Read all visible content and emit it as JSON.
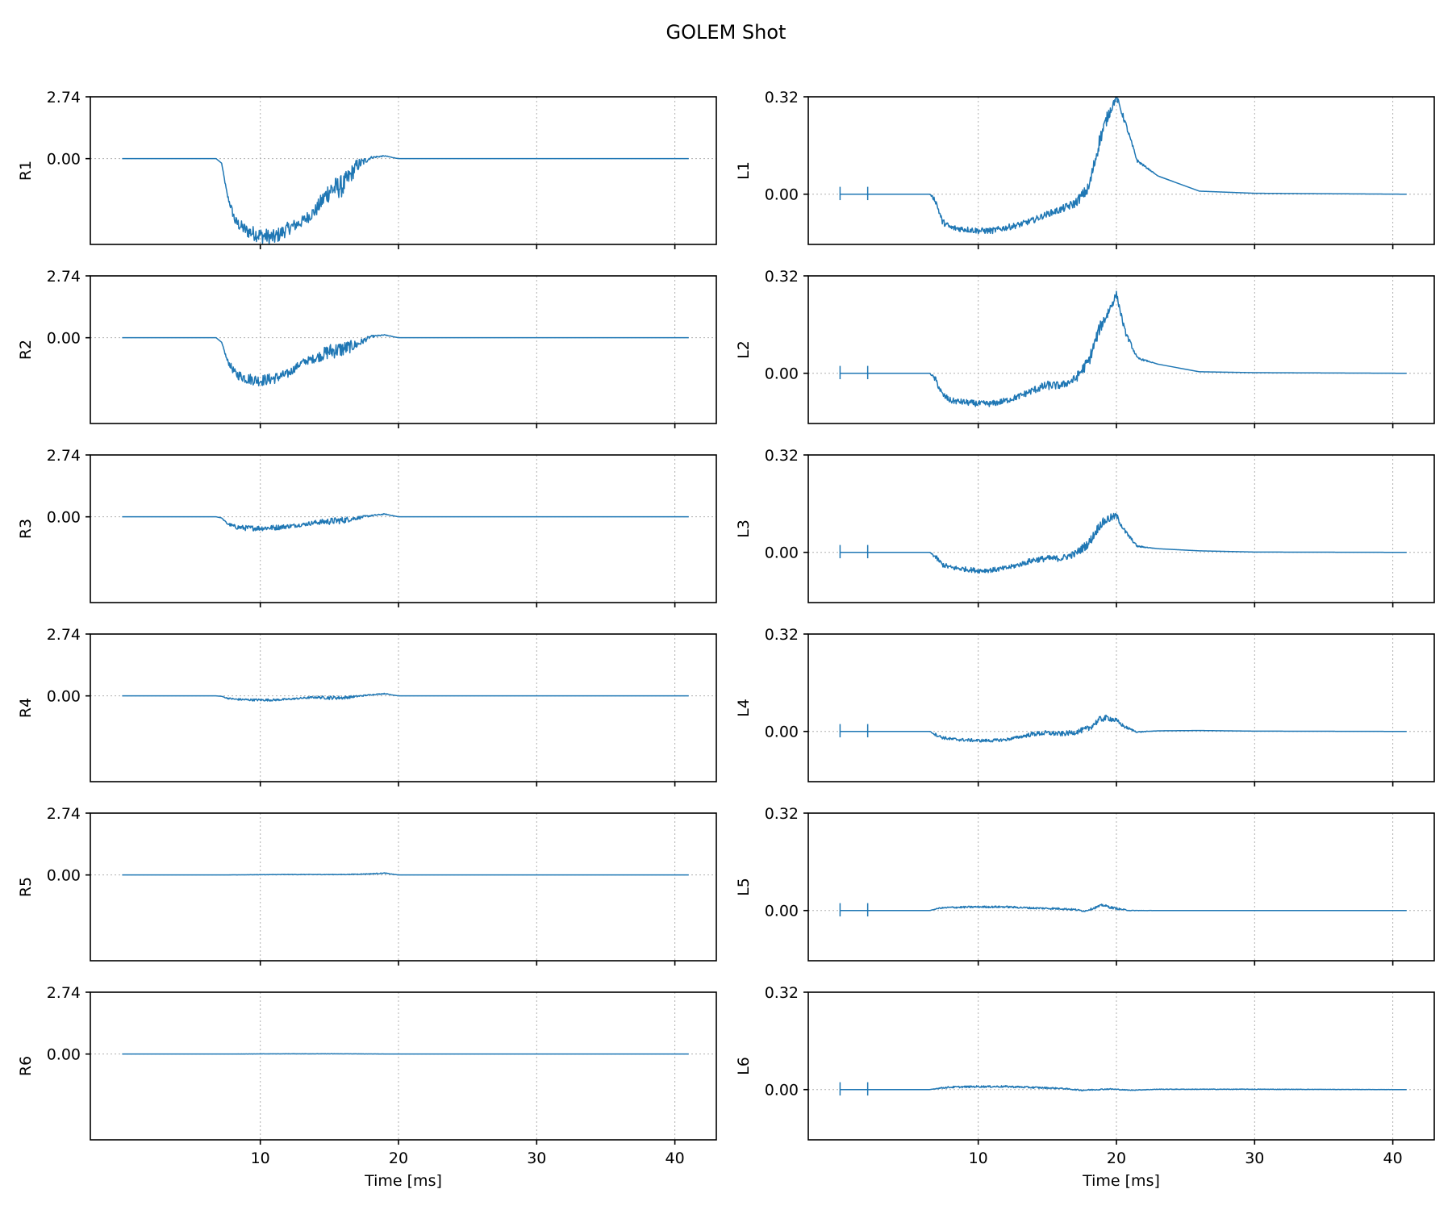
{
  "figure": {
    "title": "GOLEM Shot",
    "line_color": "#1f77b4"
  },
  "chart_data": [
    {
      "type": "line",
      "panel": "R1",
      "ylabel": "R1",
      "column": "left",
      "xlim": [
        -2.3,
        43
      ],
      "ylim": [
        -3.8,
        2.74
      ],
      "yticks": [
        "2.74",
        "0.00"
      ],
      "ytick_values": [
        2.74,
        0.0
      ],
      "xticks": [
        10,
        20,
        30,
        40
      ],
      "xlabel": "",
      "grid": true,
      "x": [
        0,
        2,
        6.8,
        7.2,
        7.6,
        8.2,
        9,
        10,
        11,
        12,
        13,
        14,
        15,
        16,
        17,
        18,
        19,
        20,
        22,
        30,
        41
      ],
      "y": [
        0,
        0,
        0,
        -0.2,
        -1.6,
        -2.8,
        -3.2,
        -3.4,
        -3.5,
        -3.1,
        -2.8,
        -2.3,
        -1.4,
        -1.2,
        -0.3,
        0.05,
        0.12,
        0.0,
        0,
        0,
        0
      ],
      "noise": [
        0,
        0,
        0,
        0,
        0.1,
        0.25,
        0.3,
        0.35,
        0.35,
        0.3,
        0.25,
        0.3,
        0.5,
        0.5,
        0.3,
        0.05,
        0.02,
        0,
        0,
        0,
        0
      ]
    },
    {
      "type": "line",
      "panel": "R2",
      "ylabel": "R2",
      "column": "left",
      "xlim": [
        -2.3,
        43
      ],
      "ylim": [
        -3.8,
        2.74
      ],
      "yticks": [
        "2.74",
        "0.00"
      ],
      "ytick_values": [
        2.74,
        0.0
      ],
      "xticks": [
        10,
        20,
        30,
        40
      ],
      "xlabel": "",
      "grid": true,
      "x": [
        0,
        2,
        6.8,
        7.2,
        7.6,
        8.2,
        9,
        10,
        11,
        12,
        13,
        14,
        15,
        16,
        17,
        18,
        19,
        20,
        22,
        30,
        41
      ],
      "y": [
        0,
        0,
        0,
        -0.2,
        -1.0,
        -1.6,
        -1.8,
        -1.9,
        -1.8,
        -1.6,
        -1.1,
        -0.9,
        -0.6,
        -0.5,
        -0.3,
        0.05,
        0.12,
        0.0,
        0,
        0,
        0
      ],
      "noise": [
        0,
        0,
        0,
        0,
        0.1,
        0.2,
        0.25,
        0.25,
        0.25,
        0.2,
        0.15,
        0.2,
        0.35,
        0.35,
        0.2,
        0.05,
        0.02,
        0,
        0,
        0,
        0
      ]
    },
    {
      "type": "line",
      "panel": "R3",
      "ylabel": "R3",
      "column": "left",
      "xlim": [
        -2.3,
        43
      ],
      "ylim": [
        -3.8,
        2.74
      ],
      "yticks": [
        "2.74",
        "0.00"
      ],
      "ytick_values": [
        2.74,
        0.0
      ],
      "xticks": [
        10,
        20,
        30,
        40
      ],
      "xlabel": "",
      "grid": true,
      "x": [
        0,
        2,
        6.8,
        7.2,
        7.6,
        8.2,
        9,
        10,
        11,
        12,
        13,
        14,
        15,
        16,
        17,
        18,
        19,
        20,
        22,
        30,
        41
      ],
      "y": [
        0,
        0,
        0,
        -0.05,
        -0.3,
        -0.45,
        -0.5,
        -0.5,
        -0.48,
        -0.42,
        -0.35,
        -0.25,
        -0.2,
        -0.15,
        -0.05,
        0.05,
        0.12,
        0.0,
        0,
        0,
        0
      ],
      "noise": [
        0,
        0,
        0,
        0,
        0.05,
        0.1,
        0.12,
        0.12,
        0.12,
        0.1,
        0.08,
        0.1,
        0.15,
        0.15,
        0.08,
        0.03,
        0.02,
        0,
        0,
        0,
        0
      ]
    },
    {
      "type": "line",
      "panel": "R4",
      "ylabel": "R4",
      "column": "left",
      "xlim": [
        -2.3,
        43
      ],
      "ylim": [
        -3.8,
        2.74
      ],
      "yticks": [
        "2.74",
        "0.00"
      ],
      "ytick_values": [
        2.74,
        0.0
      ],
      "xticks": [
        10,
        20,
        30,
        40
      ],
      "xlabel": "",
      "grid": true,
      "x": [
        0,
        2,
        6.8,
        7.2,
        7.6,
        8.2,
        9,
        10,
        11,
        12,
        13,
        14,
        15,
        16,
        17,
        18,
        19,
        20,
        22,
        30,
        41
      ],
      "y": [
        0,
        0,
        0,
        -0.02,
        -0.1,
        -0.15,
        -0.17,
        -0.18,
        -0.18,
        -0.15,
        -0.1,
        -0.06,
        -0.08,
        -0.08,
        -0.02,
        0.05,
        0.1,
        0.0,
        0,
        0,
        0
      ],
      "noise": [
        0,
        0,
        0,
        0,
        0.03,
        0.04,
        0.05,
        0.05,
        0.05,
        0.04,
        0.04,
        0.05,
        0.08,
        0.08,
        0.04,
        0.02,
        0.02,
        0,
        0,
        0,
        0
      ]
    },
    {
      "type": "line",
      "panel": "R5",
      "ylabel": "R5",
      "column": "left",
      "xlim": [
        -2.3,
        43
      ],
      "ylim": [
        -3.8,
        2.74
      ],
      "yticks": [
        "2.74",
        "0.00"
      ],
      "ytick_values": [
        2.74,
        0.0
      ],
      "xticks": [
        10,
        20,
        30,
        40
      ],
      "xlabel": "",
      "grid": true,
      "x": [
        0,
        7,
        12,
        16,
        18,
        19,
        20,
        22,
        41
      ],
      "y": [
        0,
        0,
        0.02,
        0.02,
        0.05,
        0.08,
        0.0,
        0,
        0
      ],
      "noise": [
        0,
        0,
        0.01,
        0.01,
        0.02,
        0.02,
        0,
        0,
        0
      ]
    },
    {
      "type": "line",
      "panel": "R6",
      "ylabel": "R6",
      "column": "left",
      "xlim": [
        -2.3,
        43
      ],
      "ylim": [
        -3.8,
        2.74
      ],
      "yticks": [
        "2.74",
        "0.00"
      ],
      "ytick_values": [
        2.74,
        0.0
      ],
      "xticks": [
        10,
        20,
        30,
        40
      ],
      "xlabel": "Time [ms]",
      "grid": true,
      "x": [
        0,
        7,
        12,
        16,
        20,
        41
      ],
      "y": [
        0,
        0,
        0.01,
        0.01,
        0.0,
        0
      ],
      "noise": [
        0,
        0,
        0.005,
        0.005,
        0,
        0
      ]
    },
    {
      "type": "line",
      "panel": "L1",
      "ylabel": "L1",
      "column": "right",
      "xlim": [
        -2.3,
        43
      ],
      "ylim": [
        -0.165,
        0.32
      ],
      "yticks": [
        "0.32",
        "0.00"
      ],
      "ytick_values": [
        0.32,
        0.0
      ],
      "xticks": [
        10,
        20,
        30,
        40
      ],
      "xlabel": "",
      "grid": true,
      "x": [
        0,
        6.5,
        6.9,
        7.4,
        8,
        9,
        10,
        11,
        12,
        13,
        14,
        15,
        16,
        17,
        18,
        18.8,
        19.4,
        20,
        20.6,
        21.5,
        23,
        26,
        30,
        41
      ],
      "y": [
        0,
        0,
        -0.02,
        -0.09,
        -0.11,
        -0.115,
        -0.12,
        -0.12,
        -0.11,
        -0.1,
        -0.085,
        -0.065,
        -0.05,
        -0.03,
        0.02,
        0.18,
        0.26,
        0.32,
        0.24,
        0.11,
        0.06,
        0.01,
        0.003,
        0
      ],
      "noise": [
        0,
        0,
        0.01,
        0.01,
        0.01,
        0.01,
        0.01,
        0.01,
        0.01,
        0.01,
        0.01,
        0.01,
        0.012,
        0.015,
        0.02,
        0.025,
        0.02,
        0.01,
        0.01,
        0.005,
        0,
        0,
        0,
        0
      ]
    },
    {
      "type": "line",
      "panel": "L2",
      "ylabel": "L2",
      "column": "right",
      "xlim": [
        -2.3,
        43
      ],
      "ylim": [
        -0.165,
        0.32
      ],
      "yticks": [
        "0.32",
        "0.00"
      ],
      "ytick_values": [
        0.32,
        0.0
      ],
      "xticks": [
        10,
        20,
        30,
        40
      ],
      "xlabel": "",
      "grid": true,
      "x": [
        0,
        6.5,
        6.9,
        7.4,
        8,
        9,
        10,
        11,
        12,
        13,
        14,
        15,
        16,
        17,
        18,
        18.8,
        19.4,
        20,
        20.6,
        21.5,
        23,
        26,
        30,
        41
      ],
      "y": [
        0,
        0,
        -0.02,
        -0.07,
        -0.09,
        -0.095,
        -0.1,
        -0.1,
        -0.09,
        -0.075,
        -0.055,
        -0.04,
        -0.04,
        -0.02,
        0.04,
        0.15,
        0.2,
        0.26,
        0.14,
        0.05,
        0.03,
        0.005,
        0.002,
        0
      ],
      "noise": [
        0,
        0,
        0.01,
        0.01,
        0.01,
        0.01,
        0.01,
        0.01,
        0.01,
        0.01,
        0.012,
        0.015,
        0.012,
        0.015,
        0.02,
        0.02,
        0.02,
        0.01,
        0.01,
        0.004,
        0,
        0,
        0,
        0
      ]
    },
    {
      "type": "line",
      "panel": "L3",
      "ylabel": "L3",
      "column": "right",
      "xlim": [
        -2.3,
        43
      ],
      "ylim": [
        -0.165,
        0.32
      ],
      "yticks": [
        "0.32",
        "0.00"
      ],
      "ytick_values": [
        0.32,
        0.0
      ],
      "xticks": [
        10,
        20,
        30,
        40
      ],
      "xlabel": "",
      "grid": true,
      "x": [
        0,
        6.5,
        6.9,
        7.4,
        8,
        9,
        10,
        11,
        12,
        13,
        14,
        15,
        16,
        17,
        18,
        18.8,
        19.4,
        20,
        20.6,
        21.5,
        23,
        26,
        30,
        41
      ],
      "y": [
        0,
        0,
        -0.015,
        -0.04,
        -0.05,
        -0.055,
        -0.06,
        -0.058,
        -0.052,
        -0.04,
        -0.025,
        -0.02,
        -0.02,
        -0.005,
        0.03,
        0.09,
        0.11,
        0.12,
        0.07,
        0.02,
        0.012,
        0.005,
        0.001,
        0
      ],
      "noise": [
        0,
        0,
        0.008,
        0.008,
        0.008,
        0.008,
        0.008,
        0.008,
        0.008,
        0.008,
        0.01,
        0.01,
        0.01,
        0.012,
        0.015,
        0.015,
        0.015,
        0.01,
        0.008,
        0.003,
        0,
        0,
        0,
        0
      ]
    },
    {
      "type": "line",
      "panel": "L4",
      "ylabel": "L4",
      "column": "right",
      "xlim": [
        -2.3,
        43
      ],
      "ylim": [
        -0.165,
        0.32
      ],
      "yticks": [
        "0.32",
        "0.00"
      ],
      "ytick_values": [
        0.32,
        0.0
      ],
      "xticks": [
        10,
        20,
        30,
        40
      ],
      "xlabel": "",
      "grid": true,
      "x": [
        0,
        6.5,
        6.9,
        7.4,
        8,
        9,
        10,
        11,
        12,
        13,
        14,
        15,
        16,
        17,
        18,
        18.8,
        19.4,
        20,
        20.6,
        21.5,
        23,
        26,
        30,
        41
      ],
      "y": [
        0,
        0,
        -0.01,
        -0.02,
        -0.025,
        -0.028,
        -0.03,
        -0.03,
        -0.027,
        -0.018,
        -0.008,
        -0.005,
        -0.008,
        -0.003,
        0.01,
        0.04,
        0.045,
        0.035,
        0.015,
        -0.002,
        0.002,
        0.003,
        0.001,
        0
      ],
      "noise": [
        0,
        0,
        0.005,
        0.005,
        0.005,
        0.005,
        0.005,
        0.005,
        0.005,
        0.005,
        0.008,
        0.008,
        0.008,
        0.008,
        0.01,
        0.01,
        0.01,
        0.008,
        0.005,
        0.002,
        0,
        0,
        0,
        0
      ]
    },
    {
      "type": "line",
      "panel": "L5",
      "ylabel": "L5",
      "column": "right",
      "xlim": [
        -2.3,
        43
      ],
      "ylim": [
        -0.165,
        0.32
      ],
      "yticks": [
        "0.32",
        "0.00"
      ],
      "ytick_values": [
        0.32,
        0.0
      ],
      "xticks": [
        10,
        20,
        30,
        40
      ],
      "xlabel": "",
      "grid": true,
      "x": [
        0,
        6.5,
        7.2,
        8,
        10,
        12,
        14,
        16,
        17,
        17.7,
        18.5,
        19,
        19.6,
        20.3,
        21,
        23,
        30,
        41
      ],
      "y": [
        0,
        0,
        0.008,
        0.01,
        0.012,
        0.012,
        0.008,
        0.006,
        0.003,
        -0.002,
        0.01,
        0.018,
        0.01,
        0.004,
        0.0,
        0.0,
        0.0,
        0
      ],
      "noise": [
        0,
        0,
        0.002,
        0.003,
        0.003,
        0.003,
        0.003,
        0.003,
        0.003,
        0.002,
        0.004,
        0.004,
        0.004,
        0.003,
        0.001,
        0,
        0,
        0
      ]
    },
    {
      "type": "line",
      "panel": "L6",
      "ylabel": "L6",
      "column": "right",
      "xlim": [
        -2.3,
        43
      ],
      "ylim": [
        -0.165,
        0.32
      ],
      "yticks": [
        "0.32",
        "0.00"
      ],
      "ytick_values": [
        0.32,
        0.0
      ],
      "xticks": [
        10,
        20,
        30,
        40
      ],
      "xlabel": "Time [ms]",
      "grid": true,
      "x": [
        0,
        6.5,
        7.2,
        8,
        10,
        12,
        14,
        16,
        17.5,
        18.5,
        19.5,
        21,
        23,
        30,
        41
      ],
      "y": [
        0,
        0,
        0.005,
        0.008,
        0.01,
        0.01,
        0.007,
        0.004,
        -0.002,
        0.0,
        0.002,
        -0.002,
        0.001,
        0.001,
        0
      ],
      "noise": [
        0,
        0,
        0.002,
        0.003,
        0.003,
        0.003,
        0.003,
        0.002,
        0.002,
        0.002,
        0.002,
        0.001,
        0.001,
        0.001,
        0
      ]
    }
  ]
}
